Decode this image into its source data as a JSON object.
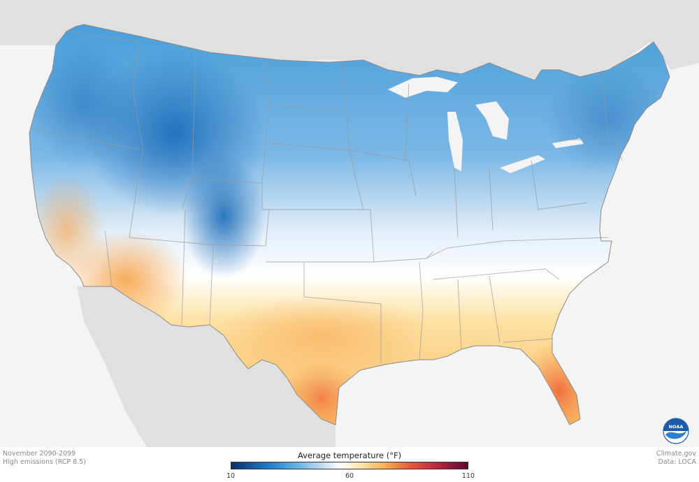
{
  "footer": {
    "period": "November 2090-2099",
    "scenario": "High emissions (RCP 8.5)",
    "credit": "Climate.gov",
    "data_source": "Data: LOCA"
  },
  "legend": {
    "title": "Average temperature (°F)",
    "ticks": [
      {
        "value": 10,
        "label": "10"
      },
      {
        "value": 60,
        "label": "60"
      },
      {
        "value": 110,
        "label": "110"
      }
    ],
    "range": [
      10,
      110
    ],
    "color_stops": [
      {
        "value": 10,
        "color": "#0b2f6b"
      },
      {
        "value": 25,
        "color": "#1f78c8"
      },
      {
        "value": 35,
        "color": "#4fa8e0"
      },
      {
        "value": 48,
        "color": "#bcdaf0"
      },
      {
        "value": 56,
        "color": "#ffffff"
      },
      {
        "value": 65,
        "color": "#fde4a8"
      },
      {
        "value": 75,
        "color": "#f8b04c"
      },
      {
        "value": 85,
        "color": "#ee5a3c"
      },
      {
        "value": 97,
        "color": "#c0243e"
      },
      {
        "value": 110,
        "color": "#5a0a30"
      }
    ]
  },
  "logo": {
    "text": "NOAA",
    "color": "#1a5aa8"
  }
}
